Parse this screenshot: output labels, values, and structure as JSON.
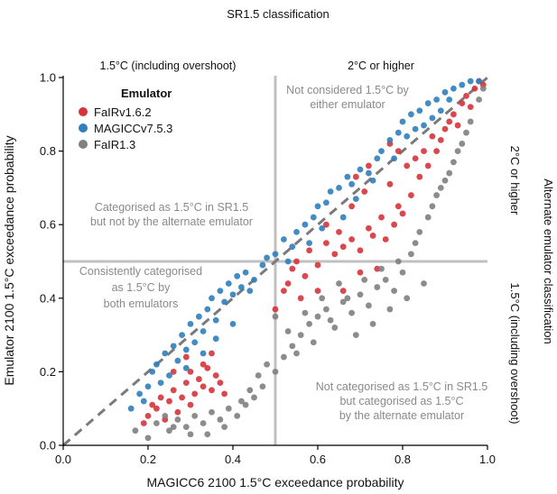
{
  "chart_data": {
    "type": "scatter",
    "title": "SR1.5 classification",
    "xlabel": "MAGICC6 2100 1.5°C exceedance probability",
    "ylabel": "Emulator 2100 1.5°C exceedance probability",
    "right_label": "Alternate emulator classification",
    "right_top_label": "2°C or higher",
    "right_bottom_label": "1.5°C (including overshoot)",
    "top_left_label": "1.5°C (including overshoot)",
    "top_right_label": "2°C or higher",
    "xlim": [
      0,
      1
    ],
    "ylim": [
      0,
      1
    ],
    "xticks": [
      "0.0",
      "0.2",
      "0.4",
      "0.6",
      "0.8",
      "1.0"
    ],
    "yticks": [
      "0.0",
      "0.2",
      "0.4",
      "0.6",
      "0.8",
      "1.0"
    ],
    "legend": {
      "title": "Emulator",
      "position": "top-left"
    },
    "annotations": {
      "top_right": [
        "Not considered 1.5°C by",
        "either emulator"
      ],
      "top_left": [
        "Categorised as 1.5°C in SR1.5",
        "but not by the alternate emulator"
      ],
      "bottom_left": [
        "Consistently categorised",
        "as 1.5°C by",
        "both emulators"
      ],
      "bottom_right": [
        "Not categorised as 1.5°C in SR1.5",
        "but categorised as 1.5°C",
        "by the alternate emulator"
      ]
    },
    "threshold_x": 0.5,
    "threshold_y": 0.5,
    "identity_line": true,
    "series": [
      {
        "name": "FaIRv1.6.2",
        "color": "#d6333a",
        "points": [
          [
            0.2,
            0.08
          ],
          [
            0.22,
            0.1
          ],
          [
            0.24,
            0.07
          ],
          [
            0.25,
            0.12
          ],
          [
            0.26,
            0.15
          ],
          [
            0.28,
            0.13
          ],
          [
            0.29,
            0.17
          ],
          [
            0.3,
            0.2
          ],
          [
            0.31,
            0.14
          ],
          [
            0.32,
            0.18
          ],
          [
            0.33,
            0.16
          ],
          [
            0.34,
            0.21
          ],
          [
            0.35,
            0.15
          ],
          [
            0.36,
            0.19
          ],
          [
            0.37,
            0.17
          ],
          [
            0.3,
            0.11
          ],
          [
            0.27,
            0.09
          ],
          [
            0.23,
            0.13
          ],
          [
            0.21,
            0.11
          ],
          [
            0.38,
            0.14
          ],
          [
            0.26,
            0.2
          ],
          [
            0.33,
            0.22
          ],
          [
            0.19,
            0.06
          ],
          [
            0.35,
            0.25
          ],
          [
            0.29,
            0.24
          ],
          [
            0.5,
            0.37
          ],
          [
            0.52,
            0.42
          ],
          [
            0.54,
            0.48
          ],
          [
            0.55,
            0.5
          ],
          [
            0.57,
            0.46
          ],
          [
            0.58,
            0.53
          ],
          [
            0.6,
            0.49
          ],
          [
            0.62,
            0.55
          ],
          [
            0.64,
            0.52
          ],
          [
            0.65,
            0.58
          ],
          [
            0.66,
            0.54
          ],
          [
            0.68,
            0.56
          ],
          [
            0.7,
            0.53
          ],
          [
            0.72,
            0.59
          ],
          [
            0.73,
            0.57
          ],
          [
            0.75,
            0.62
          ],
          [
            0.76,
            0.56
          ],
          [
            0.78,
            0.6
          ],
          [
            0.79,
            0.65
          ],
          [
            0.8,
            0.63
          ],
          [
            0.82,
            0.68
          ],
          [
            0.84,
            0.73
          ],
          [
            0.86,
            0.76
          ],
          [
            0.88,
            0.8
          ],
          [
            0.89,
            0.83
          ],
          [
            0.9,
            0.86
          ],
          [
            0.91,
            0.88
          ],
          [
            0.92,
            0.9
          ],
          [
            0.93,
            0.87
          ],
          [
            0.94,
            0.93
          ],
          [
            0.95,
            0.95
          ],
          [
            0.96,
            0.92
          ],
          [
            0.97,
            0.97
          ],
          [
            0.98,
            0.99
          ],
          [
            0.99,
            0.98
          ],
          [
            0.74,
            0.48
          ],
          [
            0.7,
            0.47
          ],
          [
            0.66,
            0.42
          ],
          [
            0.6,
            0.42
          ],
          [
            0.56,
            0.4
          ],
          [
            0.53,
            0.44
          ],
          [
            0.62,
            0.6
          ],
          [
            0.68,
            0.65
          ],
          [
            0.71,
            0.69
          ],
          [
            0.77,
            0.71
          ],
          [
            0.81,
            0.76
          ],
          [
            0.85,
            0.8
          ],
          [
            0.87,
            0.84
          ],
          [
            0.83,
            0.78
          ],
          [
            0.79,
            0.8
          ],
          [
            0.77,
            0.82
          ],
          [
            0.72,
            0.76
          ],
          [
            0.69,
            0.73
          ]
        ]
      },
      {
        "name": "MAGICCv7.5.3",
        "color": "#2f7fbc",
        "points": [
          [
            0.16,
            0.1
          ],
          [
            0.18,
            0.14
          ],
          [
            0.2,
            0.16
          ],
          [
            0.21,
            0.2
          ],
          [
            0.22,
            0.22
          ],
          [
            0.24,
            0.25
          ],
          [
            0.25,
            0.19
          ],
          [
            0.26,
            0.27
          ],
          [
            0.27,
            0.23
          ],
          [
            0.28,
            0.3
          ],
          [
            0.29,
            0.26
          ],
          [
            0.3,
            0.33
          ],
          [
            0.31,
            0.28
          ],
          [
            0.32,
            0.35
          ],
          [
            0.33,
            0.31
          ],
          [
            0.34,
            0.37
          ],
          [
            0.35,
            0.4
          ],
          [
            0.36,
            0.34
          ],
          [
            0.37,
            0.42
          ],
          [
            0.38,
            0.39
          ],
          [
            0.39,
            0.44
          ],
          [
            0.4,
            0.41
          ],
          [
            0.41,
            0.46
          ],
          [
            0.42,
            0.43
          ],
          [
            0.43,
            0.47
          ],
          [
            0.44,
            0.42
          ],
          [
            0.45,
            0.45
          ],
          [
            0.47,
            0.49
          ],
          [
            0.48,
            0.51
          ],
          [
            0.5,
            0.52
          ],
          [
            0.52,
            0.56
          ],
          [
            0.54,
            0.54
          ],
          [
            0.55,
            0.58
          ],
          [
            0.57,
            0.6
          ],
          [
            0.59,
            0.62
          ],
          [
            0.6,
            0.65
          ],
          [
            0.62,
            0.66
          ],
          [
            0.63,
            0.69
          ],
          [
            0.65,
            0.7
          ],
          [
            0.67,
            0.73
          ],
          [
            0.68,
            0.71
          ],
          [
            0.7,
            0.75
          ],
          [
            0.72,
            0.74
          ],
          [
            0.74,
            0.78
          ],
          [
            0.75,
            0.8
          ],
          [
            0.77,
            0.83
          ],
          [
            0.79,
            0.85
          ],
          [
            0.8,
            0.88
          ],
          [
            0.82,
            0.9
          ],
          [
            0.84,
            0.91
          ],
          [
            0.86,
            0.93
          ],
          [
            0.88,
            0.94
          ],
          [
            0.9,
            0.96
          ],
          [
            0.92,
            0.97
          ],
          [
            0.94,
            0.98
          ],
          [
            0.96,
            0.99
          ],
          [
            0.98,
            0.99
          ],
          [
            0.19,
            0.12
          ],
          [
            0.23,
            0.17
          ],
          [
            0.29,
            0.21
          ],
          [
            0.33,
            0.25
          ],
          [
            0.36,
            0.29
          ],
          [
            0.4,
            0.33
          ],
          [
            0.53,
            0.5
          ],
          [
            0.58,
            0.55
          ],
          [
            0.61,
            0.59
          ],
          [
            0.66,
            0.62
          ],
          [
            0.69,
            0.67
          ],
          [
            0.73,
            0.72
          ],
          [
            0.78,
            0.78
          ],
          [
            0.81,
            0.84
          ],
          [
            0.85,
            0.87
          ],
          [
            0.89,
            0.91
          ],
          [
            0.91,
            0.94
          ],
          [
            0.87,
            0.89
          ],
          [
            0.83,
            0.86
          ]
        ]
      },
      {
        "name": "FaIR1.3",
        "color": "#808080",
        "points": [
          [
            0.17,
            0.04
          ],
          [
            0.2,
            0.02
          ],
          [
            0.22,
            0.06
          ],
          [
            0.25,
            0.04
          ],
          [
            0.27,
            0.07
          ],
          [
            0.29,
            0.05
          ],
          [
            0.31,
            0.08
          ],
          [
            0.33,
            0.06
          ],
          [
            0.35,
            0.09
          ],
          [
            0.37,
            0.07
          ],
          [
            0.39,
            0.1
          ],
          [
            0.41,
            0.08
          ],
          [
            0.43,
            0.11
          ],
          [
            0.45,
            0.13
          ],
          [
            0.47,
            0.16
          ],
          [
            0.5,
            0.2
          ],
          [
            0.52,
            0.24
          ],
          [
            0.54,
            0.27
          ],
          [
            0.56,
            0.3
          ],
          [
            0.58,
            0.33
          ],
          [
            0.6,
            0.35
          ],
          [
            0.62,
            0.37
          ],
          [
            0.64,
            0.32
          ],
          [
            0.66,
            0.39
          ],
          [
            0.68,
            0.36
          ],
          [
            0.7,
            0.41
          ],
          [
            0.72,
            0.38
          ],
          [
            0.74,
            0.43
          ],
          [
            0.76,
            0.45
          ],
          [
            0.78,
            0.42
          ],
          [
            0.8,
            0.47
          ],
          [
            0.82,
            0.52
          ],
          [
            0.84,
            0.58
          ],
          [
            0.86,
            0.62
          ],
          [
            0.88,
            0.68
          ],
          [
            0.9,
            0.72
          ],
          [
            0.92,
            0.77
          ],
          [
            0.94,
            0.82
          ],
          [
            0.96,
            0.88
          ],
          [
            0.98,
            0.94
          ],
          [
            0.99,
            0.97
          ],
          [
            0.57,
            0.36
          ],
          [
            0.61,
            0.4
          ],
          [
            0.65,
            0.44
          ],
          [
            0.69,
            0.3
          ],
          [
            0.73,
            0.33
          ],
          [
            0.77,
            0.37
          ],
          [
            0.81,
            0.4
          ],
          [
            0.85,
            0.44
          ],
          [
            0.83,
            0.55
          ],
          [
            0.87,
            0.65
          ],
          [
            0.89,
            0.7
          ],
          [
            0.91,
            0.74
          ],
          [
            0.93,
            0.8
          ],
          [
            0.95,
            0.85
          ],
          [
            0.53,
            0.31
          ],
          [
            0.55,
            0.25
          ],
          [
            0.59,
            0.28
          ],
          [
            0.63,
            0.34
          ],
          [
            0.67,
            0.4
          ],
          [
            0.71,
            0.45
          ],
          [
            0.75,
            0.48
          ],
          [
            0.79,
            0.5
          ],
          [
            0.46,
            0.19
          ],
          [
            0.44,
            0.15
          ],
          [
            0.42,
            0.12
          ],
          [
            0.38,
            0.05
          ],
          [
            0.34,
            0.03
          ],
          [
            0.3,
            0.03
          ],
          [
            0.26,
            0.05
          ],
          [
            0.24,
            0.08
          ],
          [
            0.5,
            0.35
          ],
          [
            0.48,
            0.22
          ]
        ]
      }
    ]
  }
}
